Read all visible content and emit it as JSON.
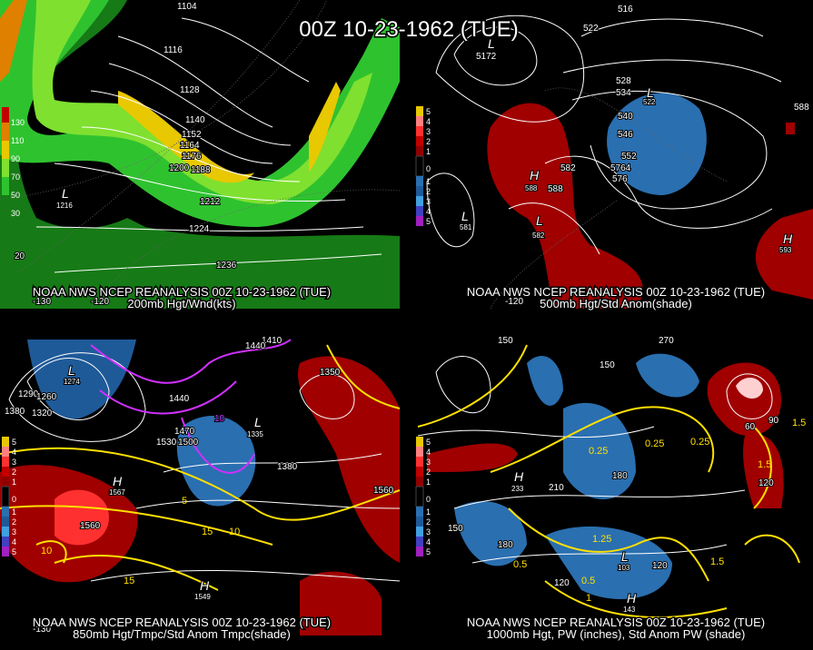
{
  "title": "00Z 10-23-1962 (TUE)",
  "panels": [
    {
      "caption": "NOAA NWS NCEP REANALYSIS 00Z 10-23-1962 (TUE)",
      "subcaption": "200mb Hgt/Wnd(kts)",
      "legend": [
        "130",
        "110",
        "90",
        "70",
        "50",
        "30"
      ],
      "labels": [
        "1104",
        "1116",
        "1128",
        "1140",
        "1152",
        "1164",
        "1176",
        "1188",
        "1200",
        "1212",
        "1224",
        "1236",
        "L",
        "1216",
        "20",
        "-120",
        "-130"
      ]
    },
    {
      "caption": "NOAA NWS NCEP REANALYSIS 00Z 10-23-1962 (TUE)",
      "subcaption": "500mb Hgt/Std Anom(shade)",
      "legend": [
        "5",
        "4",
        "3",
        "2",
        "1",
        "0",
        "1",
        "2",
        "3",
        "4",
        "5"
      ],
      "labels": [
        "516",
        "522",
        "L",
        "5172",
        "528",
        "534",
        "540",
        "546",
        "552",
        "5764",
        "576",
        "582",
        "588",
        "H",
        "588",
        "L",
        "581",
        "L",
        "582",
        "H",
        "593",
        "588",
        "L",
        "522",
        "-120"
      ]
    },
    {
      "caption": "NOAA NWS NCEP REANALYSIS 00Z 10-23-1962 (TUE)",
      "subcaption": "850mb Hgt/Tmpc/Std Anom Tmpc(shade)",
      "legend": [
        "5",
        "4",
        "3",
        "2",
        "1",
        "0",
        "1",
        "2",
        "3",
        "4",
        "5"
      ],
      "labels": [
        "L",
        "1274",
        "1290",
        "1260",
        "1380",
        "1320",
        "1410",
        "1440",
        "1470",
        "1530",
        "1500",
        "1440",
        "1380",
        "L",
        "1335",
        "1350",
        "1560",
        "H",
        "1567",
        "1560",
        "10",
        "5",
        "15",
        "10",
        "15",
        "H",
        "1549",
        "10",
        "-130"
      ]
    },
    {
      "caption": "NOAA NWS NCEP REANALYSIS 00Z 10-23-1962 (TUE)",
      "subcaption": "1000mb Hgt, PW (inches), Std Anom PW (shade)",
      "legend": [
        "5",
        "4",
        "3",
        "2",
        "1",
        "0",
        "1",
        "2",
        "3",
        "4",
        "5"
      ],
      "labels": [
        "150",
        "270",
        "180",
        "120",
        "60",
        "90",
        "0.25",
        "0.25",
        "0.25",
        "0.5",
        "0.5",
        "1",
        "1.25",
        "1.5",
        "1.5",
        "H",
        "233",
        "210",
        "180",
        "150",
        "120",
        "120",
        "H",
        "143",
        "L",
        "103",
        "150",
        "1.5"
      ]
    }
  ]
}
